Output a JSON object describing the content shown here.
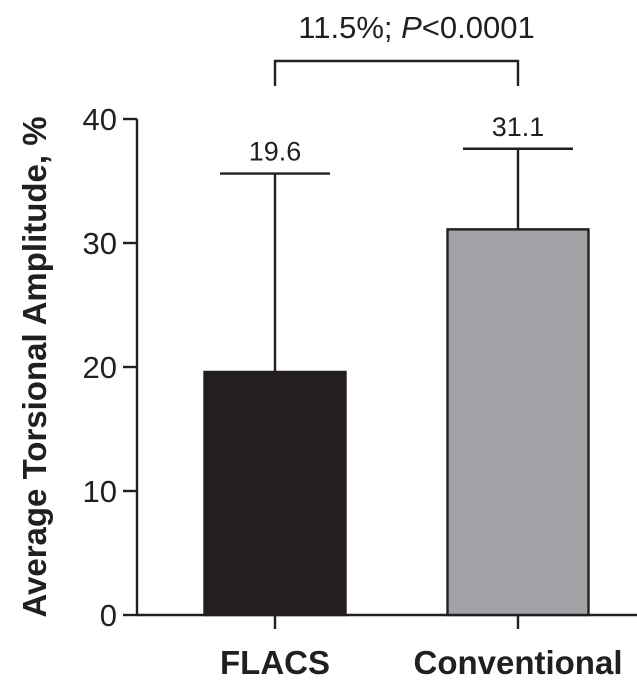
{
  "chart_data": {
    "type": "bar",
    "categories": [
      "FLACS",
      "Conventional"
    ],
    "values": [
      19.6,
      31.1
    ],
    "error_upper": [
      35.6,
      37.6
    ],
    "value_labels": [
      "19.6",
      "31.1"
    ],
    "bar_colors": [
      "#231f20",
      "#a2a1a6"
    ],
    "ylabel": "Average Torsional Amplitude, %",
    "xlabel": "",
    "ylim": [
      0,
      40
    ],
    "yticks": [
      0,
      10,
      20,
      30,
      40
    ],
    "grid": false,
    "significance": {
      "prefix": "11.5%; ",
      "p_symbol": "P",
      "p_value": "<0.0001",
      "between": [
        0,
        1
      ]
    }
  }
}
